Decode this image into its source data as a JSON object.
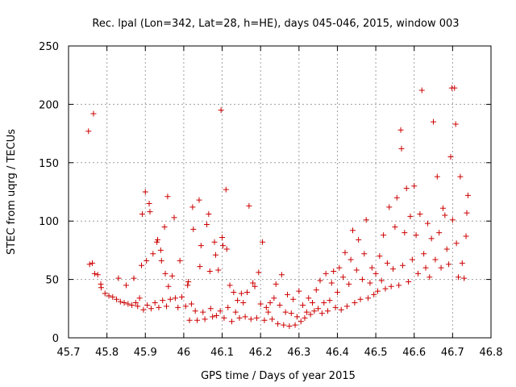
{
  "chart_data": {
    "type": "scatter",
    "title": "Rec. lpal (Lon=342, Lat=28, h=HE), days 045-046, 2015, window 003",
    "xlabel": "GPS time / Days of year 2015",
    "ylabel": "STEC from uqrg / TECUs",
    "xlim": [
      45.7,
      46.8
    ],
    "ylim": [
      0,
      250
    ],
    "xticks": [
      45.7,
      45.8,
      45.9,
      46,
      46.1,
      46.2,
      46.3,
      46.4,
      46.5,
      46.6,
      46.7,
      46.8
    ],
    "xtick_labels": [
      "45.7",
      "45.8",
      "45.9",
      "46",
      "46.1",
      "46.2",
      "46.3",
      "46.4",
      "46.5",
      "46.6",
      "46.7",
      "46.8"
    ],
    "yticks": [
      0,
      50,
      100,
      150,
      200,
      250
    ],
    "ytick_labels": [
      "0",
      "50",
      "100",
      "150",
      "200",
      "250"
    ],
    "grid": true,
    "marker": "plus",
    "color": "#cc0000",
    "series": [
      {
        "points": [
          [
            45.752,
            177
          ],
          [
            45.765,
            192
          ],
          [
            45.755,
            63
          ],
          [
            45.762,
            64
          ],
          [
            45.768,
            55
          ],
          [
            45.776,
            54
          ],
          [
            45.784,
            46
          ],
          [
            45.785,
            43
          ],
          [
            45.795,
            38
          ],
          [
            45.805,
            36
          ],
          [
            45.815,
            35
          ],
          [
            45.825,
            33
          ],
          [
            45.83,
            51
          ],
          [
            45.835,
            31
          ],
          [
            45.845,
            30
          ],
          [
            45.85,
            45
          ],
          [
            45.855,
            29
          ],
          [
            45.865,
            28
          ],
          [
            45.87,
            51
          ],
          [
            45.875,
            30
          ],
          [
            45.88,
            27
          ],
          [
            45.885,
            34
          ],
          [
            45.89,
            62
          ],
          [
            45.892,
            106
          ],
          [
            45.895,
            24
          ],
          [
            45.9,
            125
          ],
          [
            45.903,
            66
          ],
          [
            45.905,
            28
          ],
          [
            45.91,
            115
          ],
          [
            45.912,
            108
          ],
          [
            45.915,
            25
          ],
          [
            45.92,
            72
          ],
          [
            45.925,
            30
          ],
          [
            45.93,
            82
          ],
          [
            45.932,
            84
          ],
          [
            45.935,
            26
          ],
          [
            45.94,
            75
          ],
          [
            45.942,
            66
          ],
          [
            45.945,
            32
          ],
          [
            45.95,
            95
          ],
          [
            45.952,
            55
          ],
          [
            45.955,
            27
          ],
          [
            45.958,
            121
          ],
          [
            45.96,
            44
          ],
          [
            45.965,
            33
          ],
          [
            45.97,
            53
          ],
          [
            45.975,
            103
          ],
          [
            45.978,
            34
          ],
          [
            45.985,
            26
          ],
          [
            45.99,
            66
          ],
          [
            45.995,
            35
          ],
          [
            46.005,
            27
          ],
          [
            46.01,
            45
          ],
          [
            46.012,
            48
          ],
          [
            46.015,
            15
          ],
          [
            46.02,
            29
          ],
          [
            46.023,
            112
          ],
          [
            46.025,
            93
          ],
          [
            46.03,
            23
          ],
          [
            46.035,
            15
          ],
          [
            46.04,
            118
          ],
          [
            46.042,
            61
          ],
          [
            46.045,
            79
          ],
          [
            46.05,
            22
          ],
          [
            46.055,
            16
          ],
          [
            46.06,
            97
          ],
          [
            46.065,
            106
          ],
          [
            46.068,
            57
          ],
          [
            46.07,
            25
          ],
          [
            46.075,
            18
          ],
          [
            46.08,
            82
          ],
          [
            46.083,
            71
          ],
          [
            46.085,
            19
          ],
          [
            46.09,
            58
          ],
          [
            46.095,
            23
          ],
          [
            46.097,
            195
          ],
          [
            46.1,
            86
          ],
          [
            46.102,
            79
          ],
          [
            46.105,
            17
          ],
          [
            46.11,
            127
          ],
          [
            46.112,
            76
          ],
          [
            46.115,
            26
          ],
          [
            46.12,
            45
          ],
          [
            46.125,
            14
          ],
          [
            46.13,
            39
          ],
          [
            46.135,
            22
          ],
          [
            46.14,
            32
          ],
          [
            46.145,
            17
          ],
          [
            46.15,
            38
          ],
          [
            46.155,
            30
          ],
          [
            46.16,
            18
          ],
          [
            46.165,
            39
          ],
          [
            46.17,
            113
          ],
          [
            46.175,
            16
          ],
          [
            46.18,
            47
          ],
          [
            46.185,
            44
          ],
          [
            46.19,
            17
          ],
          [
            46.195,
            56
          ],
          [
            46.2,
            29
          ],
          [
            46.205,
            82
          ],
          [
            46.21,
            15
          ],
          [
            46.215,
            26
          ],
          [
            46.22,
            22
          ],
          [
            46.225,
            30
          ],
          [
            46.23,
            16
          ],
          [
            46.235,
            34
          ],
          [
            46.24,
            46
          ],
          [
            46.245,
            12
          ],
          [
            46.25,
            28
          ],
          [
            46.255,
            54
          ],
          [
            46.26,
            11
          ],
          [
            46.265,
            22
          ],
          [
            46.27,
            37
          ],
          [
            46.275,
            10
          ],
          [
            46.28,
            21
          ],
          [
            46.285,
            33
          ],
          [
            46.29,
            11
          ],
          [
            46.295,
            18
          ],
          [
            46.3,
            40
          ],
          [
            46.305,
            14
          ],
          [
            46.31,
            28
          ],
          [
            46.315,
            17
          ],
          [
            46.32,
            22
          ],
          [
            46.325,
            34
          ],
          [
            46.33,
            20
          ],
          [
            46.335,
            30
          ],
          [
            46.34,
            23
          ],
          [
            46.345,
            41
          ],
          [
            46.35,
            25
          ],
          [
            46.355,
            49
          ],
          [
            46.36,
            21
          ],
          [
            46.365,
            30
          ],
          [
            46.37,
            55
          ],
          [
            46.375,
            23
          ],
          [
            46.38,
            32
          ],
          [
            46.385,
            47
          ],
          [
            46.39,
            57
          ],
          [
            46.395,
            26
          ],
          [
            46.4,
            39
          ],
          [
            46.405,
            60
          ],
          [
            46.41,
            24
          ],
          [
            46.415,
            52
          ],
          [
            46.42,
            73
          ],
          [
            46.425,
            27
          ],
          [
            46.43,
            46
          ],
          [
            46.435,
            67
          ],
          [
            46.44,
            92
          ],
          [
            46.445,
            30
          ],
          [
            46.45,
            58
          ],
          [
            46.455,
            84
          ],
          [
            46.46,
            33
          ],
          [
            46.465,
            50
          ],
          [
            46.47,
            72
          ],
          [
            46.475,
            101
          ],
          [
            46.48,
            34
          ],
          [
            46.485,
            47
          ],
          [
            46.49,
            60
          ],
          [
            46.495,
            37
          ],
          [
            46.5,
            55
          ],
          [
            46.505,
            40
          ],
          [
            46.51,
            70
          ],
          [
            46.515,
            49
          ],
          [
            46.52,
            88
          ],
          [
            46.525,
            42
          ],
          [
            46.53,
            64
          ],
          [
            46.535,
            112
          ],
          [
            46.54,
            44
          ],
          [
            46.545,
            59
          ],
          [
            46.55,
            95
          ],
          [
            46.555,
            120
          ],
          [
            46.56,
            45
          ],
          [
            46.565,
            178
          ],
          [
            46.567,
            162
          ],
          [
            46.57,
            62
          ],
          [
            46.575,
            90
          ],
          [
            46.58,
            128
          ],
          [
            46.585,
            48
          ],
          [
            46.59,
            104
          ],
          [
            46.595,
            67
          ],
          [
            46.6,
            130
          ],
          [
            46.605,
            88
          ],
          [
            46.61,
            55
          ],
          [
            46.615,
            106
          ],
          [
            46.62,
            212
          ],
          [
            46.625,
            72
          ],
          [
            46.63,
            60
          ],
          [
            46.635,
            98
          ],
          [
            46.64,
            52
          ],
          [
            46.645,
            85
          ],
          [
            46.65,
            185
          ],
          [
            46.655,
            67
          ],
          [
            46.66,
            138
          ],
          [
            46.665,
            90
          ],
          [
            46.67,
            60
          ],
          [
            46.675,
            111
          ],
          [
            46.68,
            105
          ],
          [
            46.685,
            76
          ],
          [
            46.69,
            63
          ],
          [
            46.695,
            155
          ],
          [
            46.698,
            214
          ],
          [
            46.7,
            101
          ],
          [
            46.705,
            214
          ],
          [
            46.708,
            183
          ],
          [
            46.71,
            81
          ],
          [
            46.715,
            52
          ],
          [
            46.72,
            138
          ],
          [
            46.725,
            64
          ],
          [
            46.73,
            51
          ],
          [
            46.735,
            87
          ],
          [
            46.737,
            107
          ],
          [
            46.74,
            122
          ]
        ]
      }
    ]
  }
}
